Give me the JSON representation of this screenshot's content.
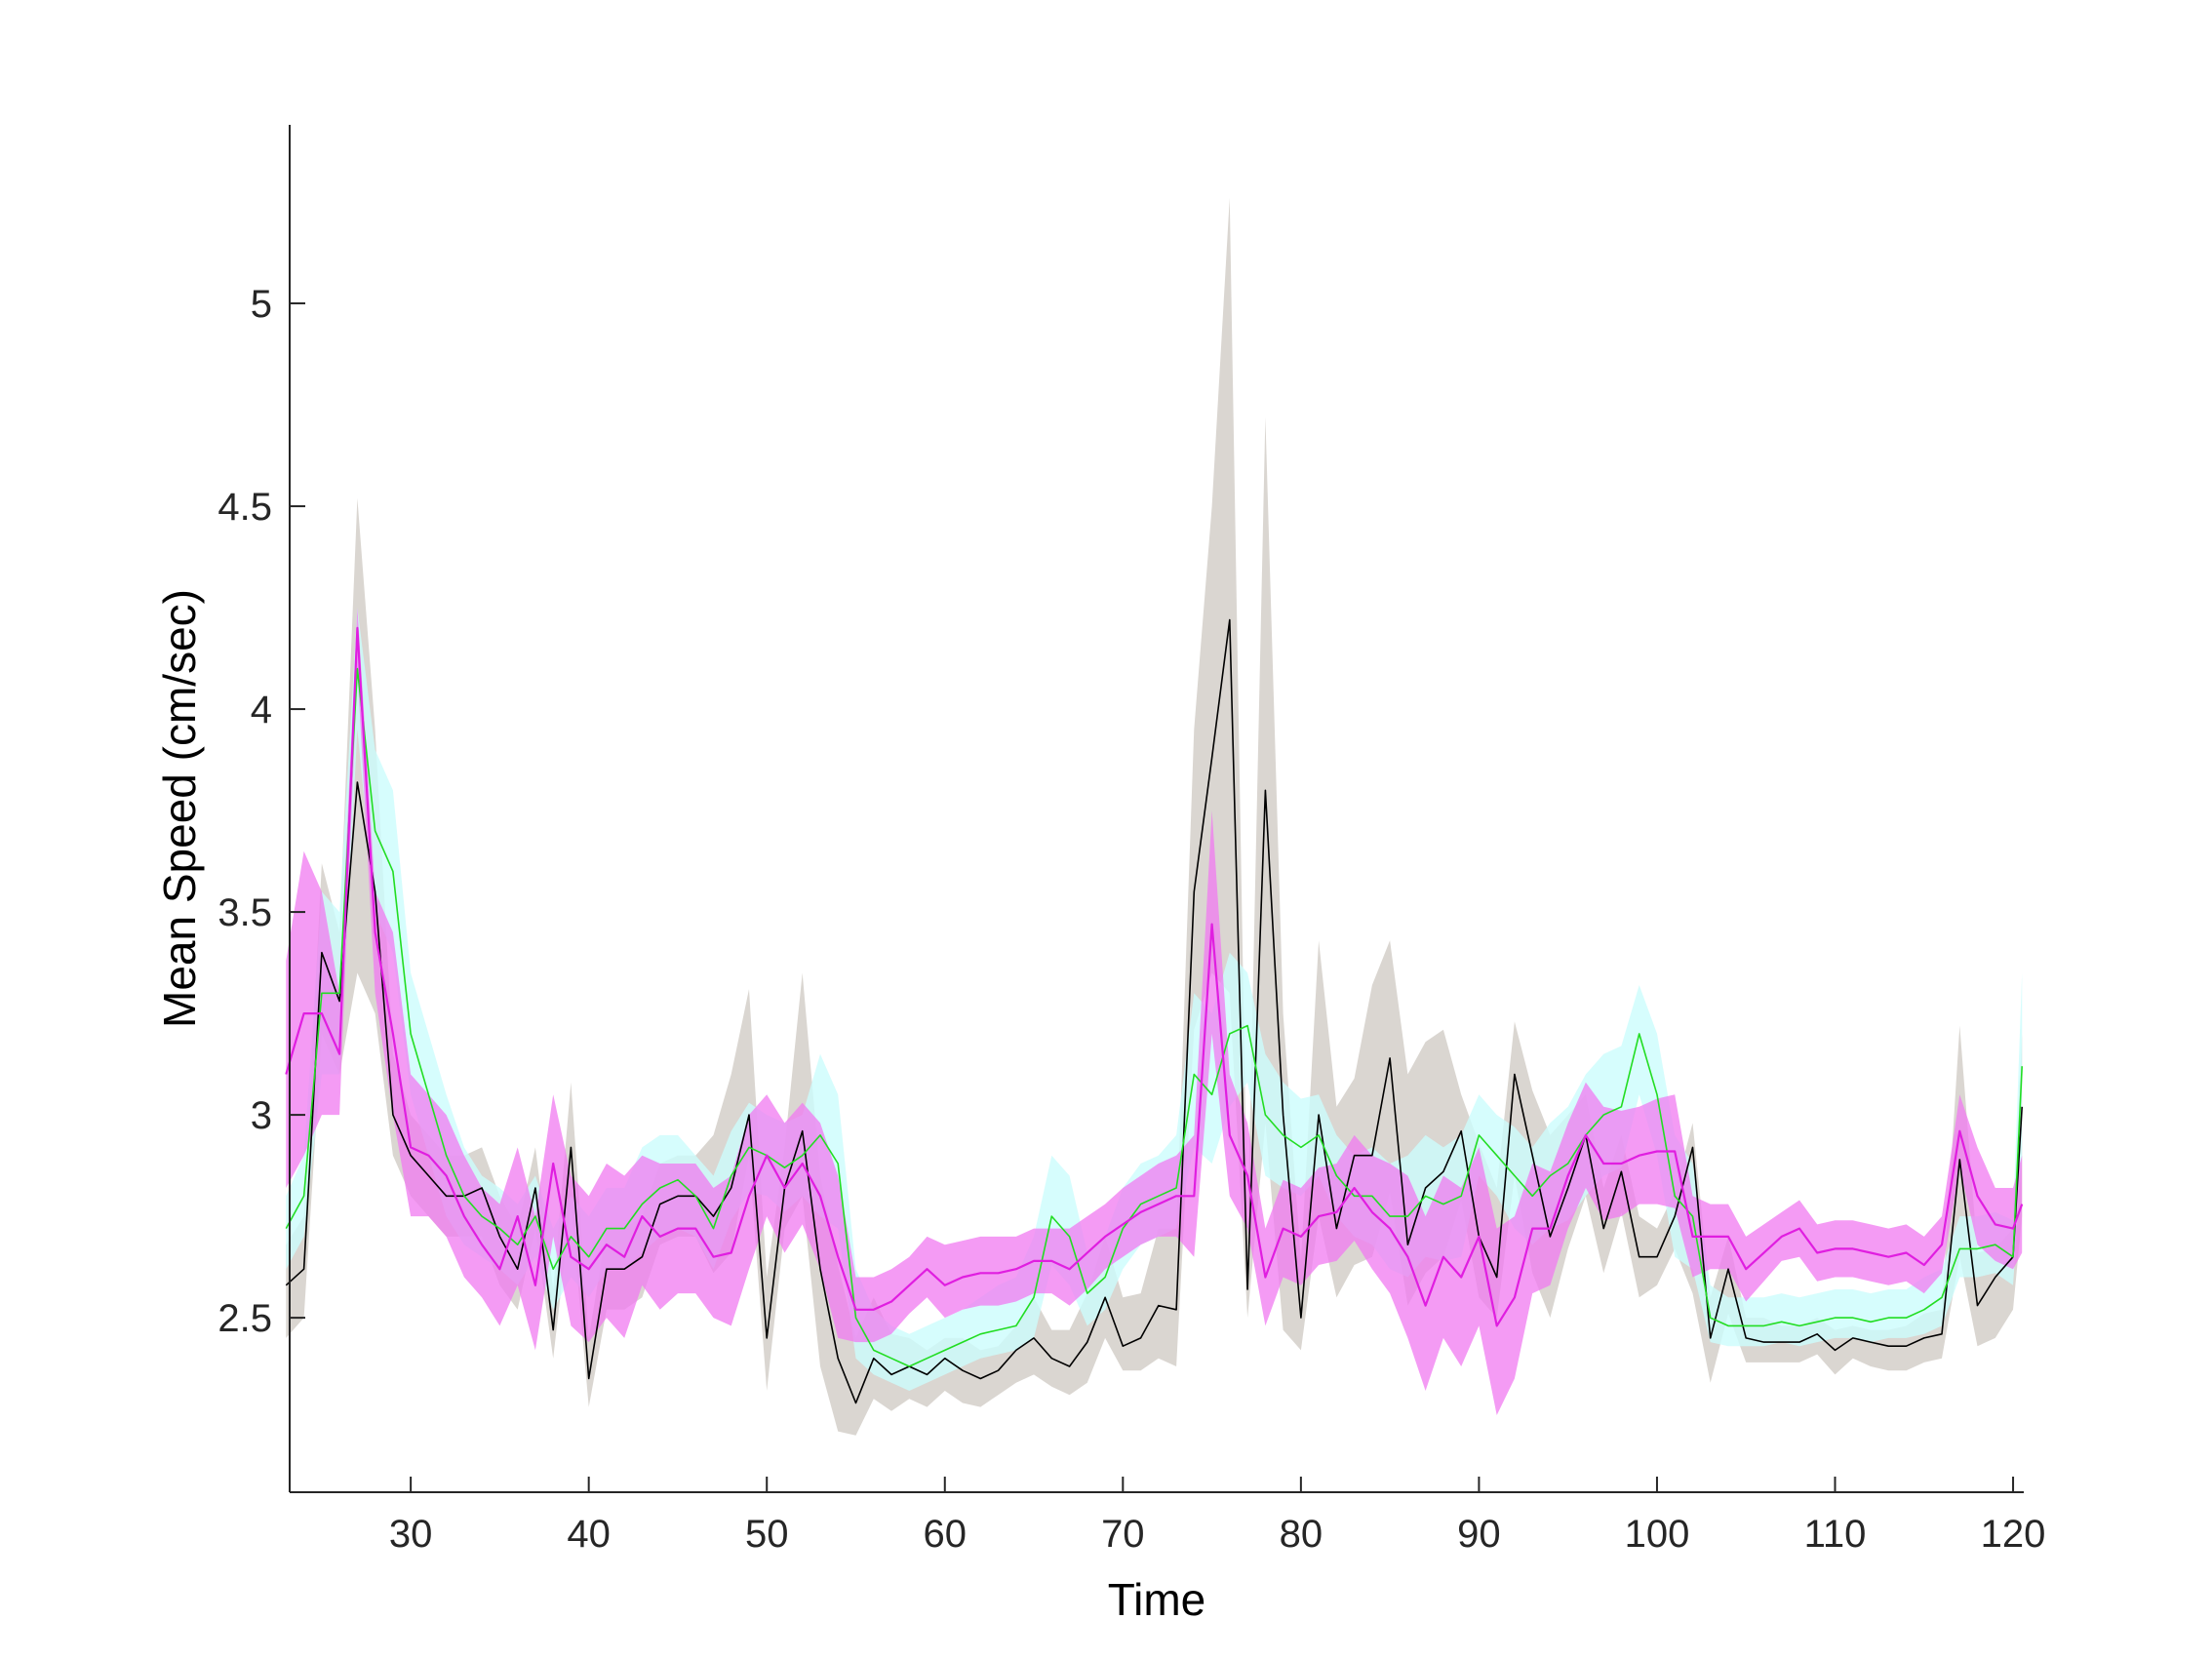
{
  "chart_data": {
    "type": "line",
    "title": "",
    "xlabel": "Time",
    "ylabel": "Mean Speed (cm/sec)",
    "xlim": [
      23.2,
      120.6
    ],
    "ylim": [
      2.07,
      5.44
    ],
    "xticks": [
      30,
      40,
      50,
      60,
      70,
      80,
      90,
      100,
      110,
      120
    ],
    "yticks": [
      2.5,
      3,
      3.5,
      4,
      4.5,
      5
    ],
    "xtick_labels": [
      "30",
      "40",
      "50",
      "60",
      "70",
      "80",
      "90",
      "100",
      "110",
      "120"
    ],
    "ytick_labels": [
      "2.5",
      "3",
      "3.5",
      "4",
      "4.5",
      "5"
    ],
    "grid": false,
    "legend": "none",
    "colors": {
      "black_line": "#000000",
      "black_band": "#d1ccc6",
      "green_line": "#22dd22",
      "green_band": "#ccfcfc",
      "magenta_line": "#e01ee0",
      "magenta_band": "#f07af0"
    },
    "x": [
      23,
      24,
      25,
      26,
      27,
      28,
      29,
      30,
      31,
      32,
      33,
      34,
      35,
      36,
      37,
      38,
      39,
      40,
      41,
      42,
      43,
      44,
      45,
      46,
      47,
      48,
      49,
      50,
      51,
      52,
      53,
      54,
      55,
      56,
      57,
      58,
      59,
      60,
      61,
      62,
      63,
      64,
      65,
      66,
      67,
      68,
      69,
      70,
      71,
      72,
      73,
      74,
      75,
      76,
      77,
      78,
      79,
      80,
      81,
      82,
      83,
      84,
      85,
      86,
      87,
      88,
      89,
      90,
      91,
      92,
      93,
      94,
      95,
      96,
      97,
      98,
      99,
      100,
      101,
      102,
      103,
      104,
      105,
      106,
      107,
      108,
      109,
      110,
      111,
      112,
      113,
      114,
      115,
      116,
      117,
      118,
      119,
      120,
      120.5
    ],
    "series": [
      {
        "color": "#000000",
        "band_color": "#d1ccc6",
        "values": [
          2.58,
          2.62,
          3.4,
          3.28,
          3.82,
          3.55,
          3.0,
          2.9,
          2.85,
          2.8,
          2.8,
          2.82,
          2.7,
          2.62,
          2.82,
          2.47,
          2.92,
          2.35,
          2.62,
          2.62,
          2.65,
          2.78,
          2.8,
          2.8,
          2.75,
          2.82,
          3.0,
          2.45,
          2.82,
          2.96,
          2.62,
          2.4,
          2.29,
          2.4,
          2.36,
          2.38,
          2.36,
          2.4,
          2.37,
          2.35,
          2.37,
          2.42,
          2.45,
          2.4,
          2.38,
          2.44,
          2.55,
          2.43,
          2.45,
          2.53,
          2.52,
          3.55,
          3.88,
          4.22,
          2.57,
          3.8,
          3.0,
          2.5,
          3.0,
          2.72,
          2.9,
          2.9,
          3.14,
          2.68,
          2.82,
          2.86,
          2.96,
          2.7,
          2.6,
          3.1,
          2.9,
          2.7,
          2.82,
          2.95,
          2.72,
          2.86,
          2.65,
          2.65,
          2.75,
          2.92,
          2.45,
          2.62,
          2.45,
          2.44,
          2.44,
          2.44,
          2.46,
          2.42,
          2.45,
          2.44,
          2.43,
          2.43,
          2.45,
          2.46,
          2.89,
          2.53,
          2.6,
          2.65,
          3.02
        ],
        "band_upper": [
          2.68,
          2.75,
          3.62,
          3.45,
          4.52,
          3.95,
          3.15,
          3.0,
          2.95,
          2.9,
          2.9,
          2.92,
          2.8,
          2.72,
          2.92,
          2.57,
          3.08,
          2.45,
          2.72,
          2.72,
          2.75,
          2.88,
          2.9,
          2.9,
          2.95,
          3.1,
          3.31,
          2.6,
          2.92,
          3.35,
          2.85,
          2.63,
          2.45,
          2.55,
          2.46,
          2.45,
          2.42,
          2.45,
          2.45,
          2.42,
          2.43,
          2.48,
          2.55,
          2.47,
          2.47,
          2.56,
          2.7,
          2.55,
          2.56,
          2.72,
          2.72,
          3.95,
          4.5,
          5.26,
          2.7,
          4.72,
          3.25,
          2.64,
          3.43,
          3.02,
          3.09,
          3.32,
          3.43,
          3.1,
          3.18,
          3.21,
          3.05,
          2.93,
          2.82,
          3.23,
          3.06,
          2.95,
          3.0,
          3.05,
          2.82,
          2.95,
          2.75,
          2.72,
          2.81,
          2.98,
          2.55,
          2.7,
          2.5,
          2.5,
          2.48,
          2.48,
          2.5,
          2.47,
          2.48,
          2.47,
          2.47,
          2.48,
          2.51,
          2.52,
          3.22,
          2.66,
          2.67,
          2.72,
          3.2
        ],
        "band_lower": [
          2.45,
          2.5,
          3.2,
          3.1,
          3.35,
          3.25,
          2.9,
          2.8,
          2.75,
          2.7,
          2.7,
          2.7,
          2.58,
          2.52,
          2.72,
          2.4,
          2.78,
          2.28,
          2.52,
          2.52,
          2.55,
          2.68,
          2.7,
          2.7,
          2.61,
          2.66,
          2.9,
          2.32,
          2.72,
          2.8,
          2.38,
          2.22,
          2.21,
          2.3,
          2.27,
          2.3,
          2.28,
          2.32,
          2.29,
          2.28,
          2.31,
          2.34,
          2.36,
          2.33,
          2.31,
          2.34,
          2.45,
          2.37,
          2.37,
          2.4,
          2.38,
          3.21,
          3.35,
          3.3,
          2.5,
          2.98,
          2.47,
          2.42,
          2.75,
          2.55,
          2.63,
          2.65,
          2.81,
          2.53,
          2.61,
          2.65,
          2.79,
          2.55,
          2.5,
          2.85,
          2.61,
          2.5,
          2.67,
          2.8,
          2.61,
          2.76,
          2.55,
          2.58,
          2.67,
          2.56,
          2.34,
          2.51,
          2.39,
          2.39,
          2.39,
          2.39,
          2.41,
          2.36,
          2.4,
          2.38,
          2.37,
          2.37,
          2.39,
          2.4,
          2.65,
          2.43,
          2.45,
          2.52,
          2.75
        ]
      },
      {
        "color": "#22dd22",
        "band_color": "#ccfcfc",
        "values": [
          2.72,
          2.8,
          3.3,
          3.3,
          4.1,
          3.7,
          3.6,
          3.2,
          3.05,
          2.9,
          2.8,
          2.75,
          2.72,
          2.68,
          2.75,
          2.62,
          2.7,
          2.65,
          2.72,
          2.72,
          2.78,
          2.82,
          2.84,
          2.8,
          2.72,
          2.85,
          2.92,
          2.9,
          2.87,
          2.9,
          2.95,
          2.88,
          2.5,
          2.42,
          2.4,
          2.38,
          2.4,
          2.42,
          2.44,
          2.46,
          2.47,
          2.48,
          2.55,
          2.75,
          2.7,
          2.56,
          2.6,
          2.72,
          2.78,
          2.8,
          2.82,
          3.1,
          3.05,
          3.2,
          3.22,
          3.0,
          2.95,
          2.92,
          2.95,
          2.85,
          2.8,
          2.8,
          2.75,
          2.75,
          2.8,
          2.78,
          2.8,
          2.95,
          2.9,
          2.85,
          2.8,
          2.85,
          2.88,
          2.95,
          3.0,
          3.02,
          3.2,
          3.05,
          2.8,
          2.75,
          2.5,
          2.48,
          2.48,
          2.48,
          2.49,
          2.48,
          2.49,
          2.5,
          2.5,
          2.49,
          2.5,
          2.5,
          2.52,
          2.55,
          2.67,
          2.67,
          2.68,
          2.65,
          3.12
        ],
        "band_upper": [
          2.8,
          2.9,
          3.55,
          3.5,
          4.25,
          3.9,
          3.8,
          3.35,
          3.2,
          3.05,
          2.92,
          2.85,
          2.82,
          2.78,
          2.85,
          2.72,
          2.8,
          2.75,
          2.82,
          2.82,
          2.92,
          2.95,
          2.95,
          2.9,
          2.85,
          2.96,
          3.03,
          3.0,
          2.98,
          3.0,
          3.15,
          3.05,
          2.62,
          2.52,
          2.48,
          2.46,
          2.48,
          2.5,
          2.52,
          2.55,
          2.58,
          2.6,
          2.7,
          2.9,
          2.85,
          2.66,
          2.7,
          2.82,
          2.88,
          2.9,
          2.95,
          3.3,
          3.25,
          3.4,
          3.35,
          3.15,
          3.08,
          3.04,
          3.05,
          2.95,
          2.9,
          2.92,
          2.88,
          2.9,
          2.95,
          2.92,
          2.95,
          3.05,
          3.0,
          2.97,
          2.92,
          2.98,
          3.02,
          3.1,
          3.15,
          3.17,
          3.32,
          3.2,
          2.95,
          2.88,
          2.58,
          2.55,
          2.55,
          2.55,
          2.56,
          2.55,
          2.56,
          2.57,
          2.57,
          2.56,
          2.57,
          2.57,
          2.6,
          2.62,
          2.75,
          2.75,
          2.76,
          2.74,
          3.35
        ],
        "band_lower": [
          2.62,
          2.7,
          3.1,
          3.1,
          3.95,
          3.5,
          3.4,
          3.05,
          2.9,
          2.75,
          2.68,
          2.65,
          2.62,
          2.58,
          2.65,
          2.52,
          2.6,
          2.55,
          2.62,
          2.62,
          2.66,
          2.7,
          2.72,
          2.7,
          2.62,
          2.74,
          2.81,
          2.8,
          2.76,
          2.8,
          2.75,
          2.72,
          2.4,
          2.36,
          2.34,
          2.32,
          2.34,
          2.36,
          2.38,
          2.4,
          2.41,
          2.42,
          2.45,
          2.63,
          2.58,
          2.48,
          2.52,
          2.62,
          2.68,
          2.7,
          2.72,
          2.92,
          2.88,
          3.02,
          3.08,
          2.85,
          2.82,
          2.8,
          2.85,
          2.75,
          2.7,
          2.68,
          2.62,
          2.6,
          2.65,
          2.64,
          2.65,
          2.85,
          2.8,
          2.72,
          2.68,
          2.72,
          2.74,
          2.8,
          2.85,
          2.87,
          3.05,
          2.9,
          2.65,
          2.62,
          2.44,
          2.43,
          2.43,
          2.43,
          2.44,
          2.43,
          2.44,
          2.45,
          2.45,
          2.44,
          2.45,
          2.45,
          2.46,
          2.48,
          2.6,
          2.6,
          2.61,
          2.58,
          2.9
        ]
      },
      {
        "color": "#e01ee0",
        "band_color": "#f07af0",
        "values": [
          3.1,
          3.25,
          3.25,
          3.15,
          4.2,
          3.45,
          3.2,
          2.92,
          2.9,
          2.85,
          2.75,
          2.68,
          2.62,
          2.75,
          2.58,
          2.88,
          2.65,
          2.62,
          2.68,
          2.65,
          2.75,
          2.7,
          2.72,
          2.72,
          2.65,
          2.66,
          2.8,
          2.9,
          2.82,
          2.88,
          2.8,
          2.65,
          2.52,
          2.52,
          2.54,
          2.58,
          2.62,
          2.58,
          2.6,
          2.61,
          2.61,
          2.62,
          2.64,
          2.64,
          2.62,
          2.66,
          2.7,
          2.73,
          2.76,
          2.78,
          2.8,
          2.8,
          3.47,
          2.95,
          2.85,
          2.6,
          2.72,
          2.7,
          2.75,
          2.76,
          2.82,
          2.76,
          2.72,
          2.65,
          2.53,
          2.65,
          2.6,
          2.7,
          2.48,
          2.55,
          2.72,
          2.72,
          2.85,
          2.95,
          2.88,
          2.88,
          2.9,
          2.91,
          2.91,
          2.7,
          2.7,
          2.7,
          2.62,
          2.66,
          2.7,
          2.72,
          2.66,
          2.67,
          2.67,
          2.66,
          2.65,
          2.66,
          2.63,
          2.68,
          2.96,
          2.8,
          2.73,
          2.72,
          2.78
        ],
        "band_upper": [
          3.38,
          3.65,
          3.55,
          3.3,
          4.25,
          3.55,
          3.45,
          3.1,
          3.05,
          3.0,
          2.9,
          2.82,
          2.78,
          2.92,
          2.75,
          3.05,
          2.85,
          2.8,
          2.88,
          2.85,
          2.9,
          2.88,
          2.88,
          2.88,
          2.82,
          2.85,
          3.0,
          3.05,
          2.98,
          3.03,
          2.98,
          2.85,
          2.6,
          2.6,
          2.62,
          2.65,
          2.7,
          2.68,
          2.69,
          2.7,
          2.7,
          2.7,
          2.72,
          2.72,
          2.72,
          2.75,
          2.78,
          2.82,
          2.85,
          2.88,
          2.9,
          2.95,
          3.75,
          3.1,
          2.98,
          2.72,
          2.84,
          2.82,
          2.87,
          2.88,
          2.95,
          2.9,
          2.88,
          2.85,
          2.75,
          2.85,
          2.82,
          2.92,
          2.72,
          2.75,
          2.88,
          2.86,
          2.98,
          3.08,
          3.02,
          3.01,
          3.02,
          3.04,
          3.05,
          2.8,
          2.78,
          2.78,
          2.7,
          2.73,
          2.76,
          2.79,
          2.73,
          2.74,
          2.74,
          2.73,
          2.72,
          2.73,
          2.7,
          2.75,
          3.05,
          2.92,
          2.82,
          2.82,
          2.9
        ],
        "band_lower": [
          2.82,
          2.9,
          3.0,
          3.0,
          4.1,
          3.3,
          3.0,
          2.75,
          2.75,
          2.7,
          2.6,
          2.55,
          2.48,
          2.58,
          2.42,
          2.7,
          2.48,
          2.44,
          2.5,
          2.45,
          2.58,
          2.52,
          2.56,
          2.56,
          2.5,
          2.48,
          2.62,
          2.75,
          2.66,
          2.73,
          2.62,
          2.45,
          2.44,
          2.44,
          2.46,
          2.51,
          2.55,
          2.5,
          2.52,
          2.53,
          2.53,
          2.54,
          2.56,
          2.56,
          2.53,
          2.57,
          2.62,
          2.65,
          2.68,
          2.7,
          2.7,
          2.65,
          3.2,
          2.8,
          2.72,
          2.48,
          2.6,
          2.58,
          2.63,
          2.64,
          2.69,
          2.62,
          2.56,
          2.45,
          2.32,
          2.45,
          2.38,
          2.48,
          2.26,
          2.35,
          2.56,
          2.58,
          2.72,
          2.82,
          2.74,
          2.75,
          2.78,
          2.78,
          2.77,
          2.6,
          2.62,
          2.62,
          2.54,
          2.59,
          2.64,
          2.65,
          2.59,
          2.6,
          2.6,
          2.59,
          2.58,
          2.59,
          2.56,
          2.61,
          2.87,
          2.68,
          2.64,
          2.62,
          2.66
        ]
      }
    ]
  }
}
